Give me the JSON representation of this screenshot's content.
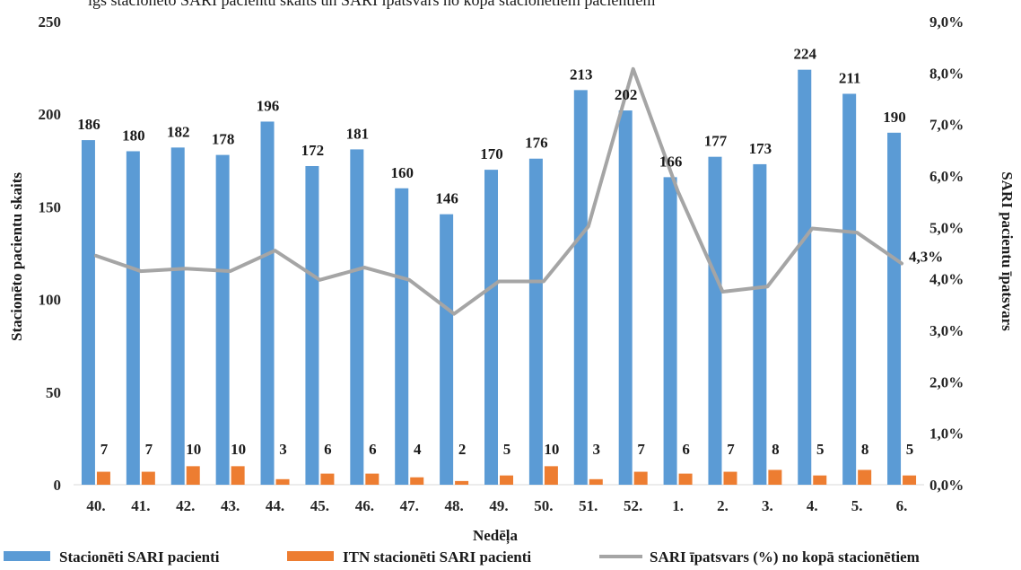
{
  "chart_data": {
    "type": "bar",
    "clipped_title": "igs stacionēto SARI pacientu skaits un SARI īpatsvars no kopā stacionētiem pacientiem",
    "xlabel": "Nedēļa",
    "ylabel": "Stacionēto pacientu skaits",
    "y2label": "SARI pacientu īpatsvars",
    "ylim": [
      0,
      250
    ],
    "y2lim": [
      0,
      9
    ],
    "yticks": [
      "0",
      "50",
      "100",
      "150",
      "200",
      "250"
    ],
    "y2ticks": [
      "0,0%",
      "1,0%",
      "2,0%",
      "3,0%",
      "4,0%",
      "5,0%",
      "6,0%",
      "7,0%",
      "8,0%",
      "9,0%"
    ],
    "categories": [
      "40.",
      "41.",
      "42.",
      "43.",
      "44.",
      "45.",
      "46.",
      "47.",
      "48.",
      "49.",
      "50.",
      "51.",
      "52.",
      "1.",
      "2.",
      "3.",
      "4.",
      "5.",
      "6."
    ],
    "series": [
      {
        "name": "Stacionēti SARI pacienti",
        "type": "bar",
        "color": "#5b9bd5",
        "values": [
          186,
          180,
          182,
          178,
          196,
          172,
          181,
          160,
          146,
          170,
          176,
          213,
          202,
          166,
          177,
          173,
          224,
          211,
          190
        ]
      },
      {
        "name": "ITN stacionēti SARI pacienti",
        "type": "bar",
        "color": "#ed7d31",
        "values": [
          7,
          7,
          10,
          10,
          3,
          6,
          6,
          4,
          2,
          5,
          10,
          3,
          7,
          6,
          7,
          8,
          5,
          8,
          5
        ]
      },
      {
        "name": "SARI īpatsvars (%) no kopā stacionētiem",
        "type": "line",
        "axis": "secondary",
        "color": "#a5a5a5",
        "values": [
          4.45,
          4.15,
          4.2,
          4.15,
          4.55,
          3.98,
          4.22,
          3.98,
          3.32,
          3.95,
          3.95,
          5.02,
          8.08,
          5.7,
          3.75,
          3.85,
          4.98,
          4.9,
          4.3
        ],
        "last_label": "4,3%"
      }
    ],
    "legend_position": "bottom",
    "grid": false
  }
}
